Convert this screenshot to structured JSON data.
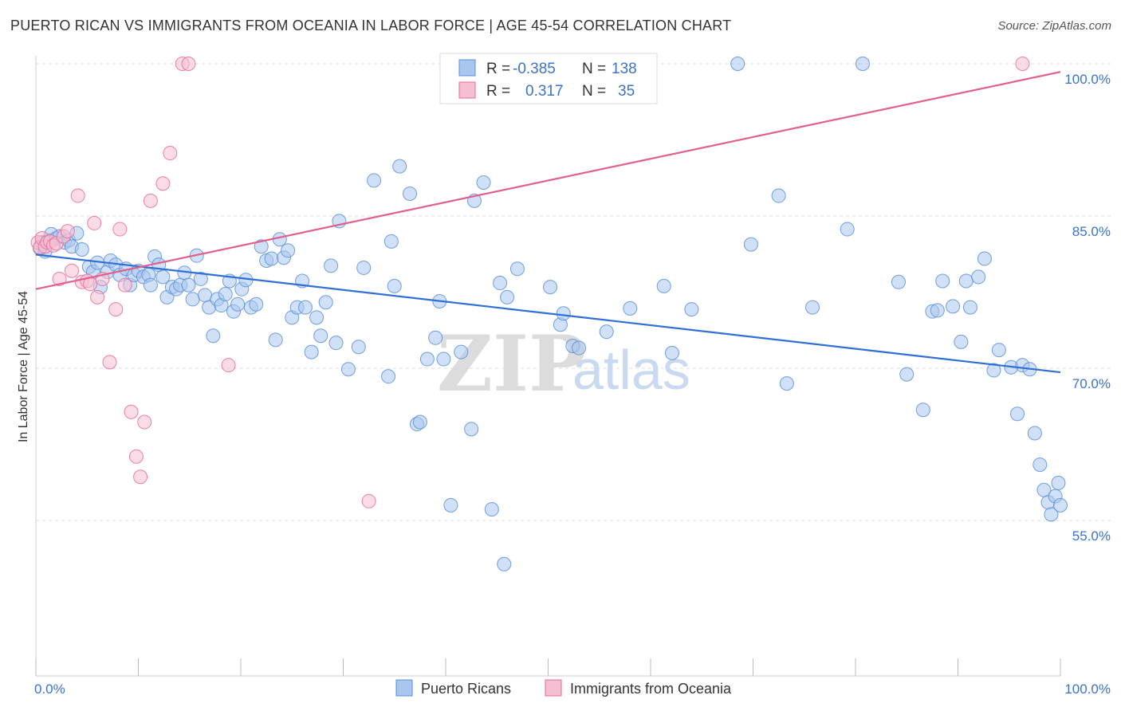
{
  "title": "PUERTO RICAN VS IMMIGRANTS FROM OCEANIA IN LABOR FORCE | AGE 45-54 CORRELATION CHART",
  "source": "Source: ZipAtlas.com",
  "watermark": {
    "zip": "ZIP",
    "atlas": "atlas"
  },
  "chart_data": {
    "type": "scatter",
    "title": "PUERTO RICAN VS IMMIGRANTS FROM OCEANIA IN LABOR FORCE | AGE 45-54 CORRELATION CHART",
    "ylabel": "In Labor Force | Age 45-54",
    "xlabel": "",
    "xlim": [
      0,
      100
    ],
    "ylim": [
      40,
      102
    ],
    "x_tick_labels": [
      {
        "value": 0,
        "label": "0.0%"
      },
      {
        "value": 100,
        "label": "100.0%"
      }
    ],
    "y_tick_labels": [
      {
        "value": 55,
        "label": "55.0%"
      },
      {
        "value": 70,
        "label": "70.0%"
      },
      {
        "value": 85,
        "label": "85.0%"
      },
      {
        "value": 100,
        "label": "100.0%"
      }
    ],
    "grid": true,
    "legend_placement": "top-center",
    "bottom_legend": [
      "Puerto Ricans",
      "Immigrants from Oceania"
    ],
    "series": [
      {
        "name": "Puerto Ricans",
        "color": "#5b8fd9",
        "fill": "#a9c6ef",
        "r_label": "R =",
        "r_value": "-0.385",
        "n_label": "N =",
        "n_value": "138",
        "trend": {
          "x": [
            0,
            100
          ],
          "y": [
            81.2,
            69.6
          ]
        },
        "points": [
          [
            0.4,
            81.8
          ],
          [
            0.6,
            82.4
          ],
          [
            0.9,
            81.5
          ],
          [
            1.2,
            82.6
          ],
          [
            1.5,
            83.2
          ],
          [
            2.0,
            82.8
          ],
          [
            2.3,
            83.0
          ],
          [
            2.8,
            82.4
          ],
          [
            3.2,
            82.6
          ],
          [
            3.5,
            82.0
          ],
          [
            4.0,
            83.3
          ],
          [
            4.5,
            81.7
          ],
          [
            5.2,
            80.0
          ],
          [
            5.6,
            79.5
          ],
          [
            6.0,
            80.4
          ],
          [
            6.3,
            78.0
          ],
          [
            7.0,
            79.5
          ],
          [
            7.3,
            80.6
          ],
          [
            7.8,
            80.2
          ],
          [
            8.2,
            79.2
          ],
          [
            8.8,
            79.8
          ],
          [
            9.2,
            78.2
          ],
          [
            9.6,
            79.2
          ],
          [
            10.0,
            79.6
          ],
          [
            10.5,
            79.0
          ],
          [
            11.0,
            79.2
          ],
          [
            11.2,
            78.2
          ],
          [
            11.6,
            81.0
          ],
          [
            12.0,
            80.2
          ],
          [
            12.4,
            79.0
          ],
          [
            12.8,
            77.0
          ],
          [
            13.3,
            78.0
          ],
          [
            13.7,
            77.8
          ],
          [
            14.1,
            78.2
          ],
          [
            14.5,
            79.4
          ],
          [
            14.9,
            78.2
          ],
          [
            15.3,
            76.8
          ],
          [
            15.7,
            81.1
          ],
          [
            16.1,
            78.8
          ],
          [
            16.5,
            77.2
          ],
          [
            16.9,
            76.0
          ],
          [
            17.3,
            73.2
          ],
          [
            17.7,
            76.8
          ],
          [
            18.1,
            76.2
          ],
          [
            18.5,
            77.3
          ],
          [
            18.9,
            78.6
          ],
          [
            19.3,
            75.6
          ],
          [
            19.7,
            76.3
          ],
          [
            20.1,
            77.8
          ],
          [
            20.5,
            78.7
          ],
          [
            21.0,
            76.0
          ],
          [
            21.5,
            76.3
          ],
          [
            22.0,
            82.0
          ],
          [
            22.5,
            80.6
          ],
          [
            23.0,
            80.8
          ],
          [
            23.4,
            72.8
          ],
          [
            23.8,
            82.7
          ],
          [
            24.2,
            80.9
          ],
          [
            24.6,
            81.6
          ],
          [
            25.0,
            75.0
          ],
          [
            25.5,
            76.0
          ],
          [
            26.0,
            78.6
          ],
          [
            26.3,
            76.0
          ],
          [
            26.9,
            71.6
          ],
          [
            27.4,
            75.0
          ],
          [
            27.8,
            73.2
          ],
          [
            28.3,
            76.5
          ],
          [
            28.8,
            80.1
          ],
          [
            29.3,
            72.5
          ],
          [
            29.6,
            84.5
          ],
          [
            30.5,
            69.9
          ],
          [
            31.5,
            72.1
          ],
          [
            32.0,
            79.9
          ],
          [
            33.0,
            88.5
          ],
          [
            34.4,
            69.2
          ],
          [
            34.7,
            82.5
          ],
          [
            35.0,
            78.1
          ],
          [
            35.5,
            89.9
          ],
          [
            36.5,
            87.2
          ],
          [
            37.2,
            64.5
          ],
          [
            37.5,
            64.7
          ],
          [
            38.2,
            70.9
          ],
          [
            39.0,
            73.0
          ],
          [
            39.4,
            76.6
          ],
          [
            39.8,
            70.9
          ],
          [
            40.5,
            56.5
          ],
          [
            41.5,
            71.6
          ],
          [
            42.5,
            64.0
          ],
          [
            42.8,
            86.5
          ],
          [
            43.7,
            88.3
          ],
          [
            44.5,
            56.1
          ],
          [
            45.3,
            78.4
          ],
          [
            45.7,
            50.7
          ],
          [
            46.0,
            77.0
          ],
          [
            47.0,
            79.8
          ],
          [
            50.2,
            78.0
          ],
          [
            51.2,
            74.3
          ],
          [
            51.5,
            75.4
          ],
          [
            52.4,
            72.2
          ],
          [
            53.0,
            72.0
          ],
          [
            55.7,
            73.6
          ],
          [
            58.0,
            75.9
          ],
          [
            61.3,
            78.1
          ],
          [
            62.1,
            71.5
          ],
          [
            64.0,
            75.8
          ],
          [
            68.5,
            100.0
          ],
          [
            69.8,
            82.2
          ],
          [
            72.5,
            87.0
          ],
          [
            73.3,
            68.5
          ],
          [
            75.8,
            76.0
          ],
          [
            79.2,
            83.7
          ],
          [
            80.7,
            100.0
          ],
          [
            84.2,
            78.5
          ],
          [
            85.0,
            69.4
          ],
          [
            86.6,
            65.9
          ],
          [
            87.5,
            75.6
          ],
          [
            88.0,
            75.7
          ],
          [
            88.5,
            78.6
          ],
          [
            89.5,
            76.1
          ],
          [
            90.3,
            72.6
          ],
          [
            90.8,
            78.6
          ],
          [
            91.2,
            76.0
          ],
          [
            92.0,
            79.0
          ],
          [
            92.6,
            80.8
          ],
          [
            93.5,
            69.8
          ],
          [
            94.0,
            71.8
          ],
          [
            95.2,
            70.1
          ],
          [
            95.8,
            65.5
          ],
          [
            96.3,
            70.3
          ],
          [
            97.0,
            69.9
          ],
          [
            97.5,
            63.6
          ],
          [
            98.0,
            60.5
          ],
          [
            98.4,
            58.0
          ],
          [
            98.8,
            56.8
          ],
          [
            99.1,
            55.6
          ],
          [
            99.5,
            57.4
          ],
          [
            99.8,
            58.7
          ],
          [
            100.0,
            56.5
          ]
        ]
      },
      {
        "name": "Immigrants from Oceania",
        "color": "#e86b96",
        "fill": "#f6bfd1",
        "r_label": "R =",
        "r_value": "0.317",
        "n_label": "N =",
        "n_value": "35",
        "trend": {
          "x": [
            0,
            100
          ],
          "y": [
            77.8,
            99.2
          ]
        },
        "points": [
          [
            0.2,
            82.4
          ],
          [
            0.4,
            81.9
          ],
          [
            0.6,
            82.8
          ],
          [
            0.9,
            82.0
          ],
          [
            1.1,
            82.4
          ],
          [
            1.4,
            82.5
          ],
          [
            1.7,
            82.1
          ],
          [
            2.0,
            82.3
          ],
          [
            2.3,
            78.8
          ],
          [
            2.7,
            83.0
          ],
          [
            3.1,
            83.5
          ],
          [
            3.5,
            79.6
          ],
          [
            4.1,
            87.0
          ],
          [
            4.5,
            78.5
          ],
          [
            5.0,
            78.6
          ],
          [
            5.3,
            78.3
          ],
          [
            5.7,
            84.3
          ],
          [
            6.0,
            77.0
          ],
          [
            6.5,
            78.8
          ],
          [
            7.2,
            70.6
          ],
          [
            7.8,
            75.8
          ],
          [
            8.2,
            83.7
          ],
          [
            8.7,
            78.2
          ],
          [
            9.3,
            65.7
          ],
          [
            9.8,
            61.3
          ],
          [
            10.2,
            59.3
          ],
          [
            10.6,
            64.7
          ],
          [
            11.2,
            86.5
          ],
          [
            12.4,
            88.2
          ],
          [
            13.1,
            91.2
          ],
          [
            14.3,
            100.0
          ],
          [
            14.9,
            100.0
          ],
          [
            18.8,
            70.3
          ],
          [
            32.5,
            56.9
          ],
          [
            96.3,
            100.0
          ]
        ]
      }
    ]
  }
}
